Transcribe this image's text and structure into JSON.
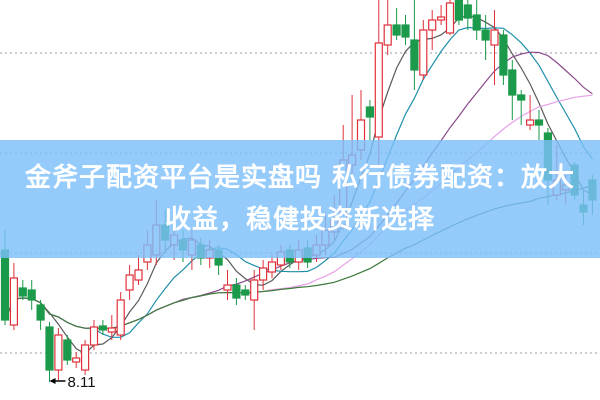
{
  "banner": {
    "title": "金斧子配资平台是实盘吗 私行债券配资：放大收益，稳健投资新选择"
  },
  "chart_data": {
    "type": "candlestick",
    "title": "",
    "xlabel": "",
    "ylabel": "",
    "ylim": [
      7.93,
      11.93
    ],
    "grid": "dotted horizontal",
    "gridlines": [
      11.4,
      10.4,
      9.4,
      8.4
    ],
    "up_color": "#e0303a",
    "down_color": "#1a9a4a",
    "annotation": {
      "label": "8.11",
      "value": 8.11,
      "candle_index": 5
    },
    "candle_fields": [
      "open",
      "close",
      "high",
      "low"
    ],
    "candles": [
      [
        9.43,
        8.73,
        9.63,
        8.68
      ],
      [
        8.68,
        9.15,
        9.3,
        8.63
      ],
      [
        9.05,
        8.97,
        9.13,
        8.93
      ],
      [
        9.03,
        8.93,
        9.13,
        8.83
      ],
      [
        8.88,
        8.73,
        8.93,
        8.63
      ],
      [
        8.66,
        8.23,
        8.71,
        8.11
      ],
      [
        8.23,
        8.58,
        8.65,
        8.13
      ],
      [
        8.53,
        8.33,
        8.58,
        8.28
      ],
      [
        8.31,
        8.35,
        8.41,
        8.25
      ],
      [
        8.23,
        8.48,
        8.53,
        8.18
      ],
      [
        8.48,
        8.66,
        8.73,
        8.43
      ],
      [
        8.67,
        8.63,
        8.73,
        8.58
      ],
      [
        8.61,
        8.65,
        8.78,
        8.53
      ],
      [
        8.58,
        8.93,
        9.01,
        8.53
      ],
      [
        9.03,
        9.18,
        9.28,
        8.93
      ],
      [
        9.13,
        9.23,
        9.38,
        9.08
      ],
      [
        9.31,
        9.48,
        9.63,
        9.23
      ],
      [
        9.38,
        9.68,
        9.93,
        9.28
      ],
      [
        9.68,
        9.53,
        9.83,
        9.43
      ],
      [
        9.48,
        9.58,
        9.65,
        9.33
      ],
      [
        9.53,
        9.43,
        9.63,
        9.31
      ],
      [
        9.38,
        9.53,
        9.63,
        9.23
      ],
      [
        9.48,
        9.35,
        9.55,
        9.28
      ],
      [
        9.35,
        9.43,
        9.53,
        9.25
      ],
      [
        9.43,
        9.28,
        9.48,
        9.18
      ],
      [
        9.03,
        9.08,
        9.23,
        8.93
      ],
      [
        9.08,
        8.95,
        9.15,
        8.88
      ],
      [
        9.03,
        8.98,
        9.08,
        8.93
      ],
      [
        8.93,
        9.13,
        9.23,
        8.63
      ],
      [
        9.13,
        9.25,
        9.33,
        9.03
      ],
      [
        9.21,
        9.31,
        9.38,
        9.15
      ],
      [
        9.28,
        9.41,
        9.48,
        9.23
      ],
      [
        9.43,
        9.31,
        9.48,
        9.25
      ],
      [
        9.31,
        9.43,
        9.53,
        9.23
      ],
      [
        9.45,
        9.31,
        9.53,
        9.25
      ],
      [
        9.38,
        9.48,
        9.58,
        9.31
      ],
      [
        9.48,
        9.63,
        9.78,
        9.38
      ],
      [
        9.61,
        9.73,
        9.98,
        9.53
      ],
      [
        9.68,
        10.33,
        10.68,
        9.63
      ],
      [
        10.28,
        10.38,
        10.98,
        10.18
      ],
      [
        10.43,
        10.73,
        11.03,
        10.33
      ],
      [
        10.86,
        10.76,
        10.93,
        10.53
      ],
      [
        10.56,
        11.5,
        11.93,
        10.28
      ],
      [
        11.48,
        11.68,
        11.93,
        11.38
      ],
      [
        11.68,
        11.58,
        11.85,
        11.53
      ],
      [
        11.68,
        11.56,
        11.78,
        11.48
      ],
      [
        11.53,
        11.23,
        11.93,
        11.03
      ],
      [
        11.18,
        11.63,
        11.73,
        11.13
      ],
      [
        11.63,
        11.73,
        11.83,
        11.43
      ],
      [
        11.73,
        11.76,
        11.88,
        11.68
      ],
      [
        11.6,
        11.9,
        11.93,
        11.58
      ],
      [
        11.93,
        11.73,
        11.93,
        11.68
      ],
      [
        11.88,
        11.75,
        11.93,
        11.63
      ],
      [
        11.78,
        11.63,
        11.93,
        11.53
      ],
      [
        11.63,
        11.53,
        11.78,
        11.33
      ],
      [
        11.48,
        11.63,
        11.83,
        11.08
      ],
      [
        11.58,
        11.18,
        11.63,
        11.08
      ],
      [
        11.23,
        10.98,
        11.33,
        10.73
      ],
      [
        10.98,
        10.93,
        11.03,
        10.68
      ],
      [
        10.68,
        10.73,
        10.98,
        10.63
      ],
      [
        10.73,
        10.68,
        10.83,
        10.53
      ],
      [
        10.6,
        10.13,
        10.65,
        9.88
      ],
      [
        9.98,
        10.13,
        10.48,
        9.93
      ],
      [
        10.03,
        10.08,
        10.18,
        9.88
      ],
      [
        10.28,
        9.98,
        10.31,
        9.93
      ],
      [
        9.88,
        9.81,
        10.03,
        9.68
      ],
      [
        10.13,
        9.93,
        10.18,
        9.78
      ]
    ],
    "moving_averages": [
      {
        "period": 5,
        "color": "#5a5a5a"
      },
      {
        "period": 10,
        "color": "#1f8fa8"
      },
      {
        "period": 20,
        "color": "#8a4a8a"
      },
      {
        "period": 30,
        "color": "#e8a0e8"
      },
      {
        "period": 60,
        "color": "#3a7a3a"
      }
    ]
  }
}
